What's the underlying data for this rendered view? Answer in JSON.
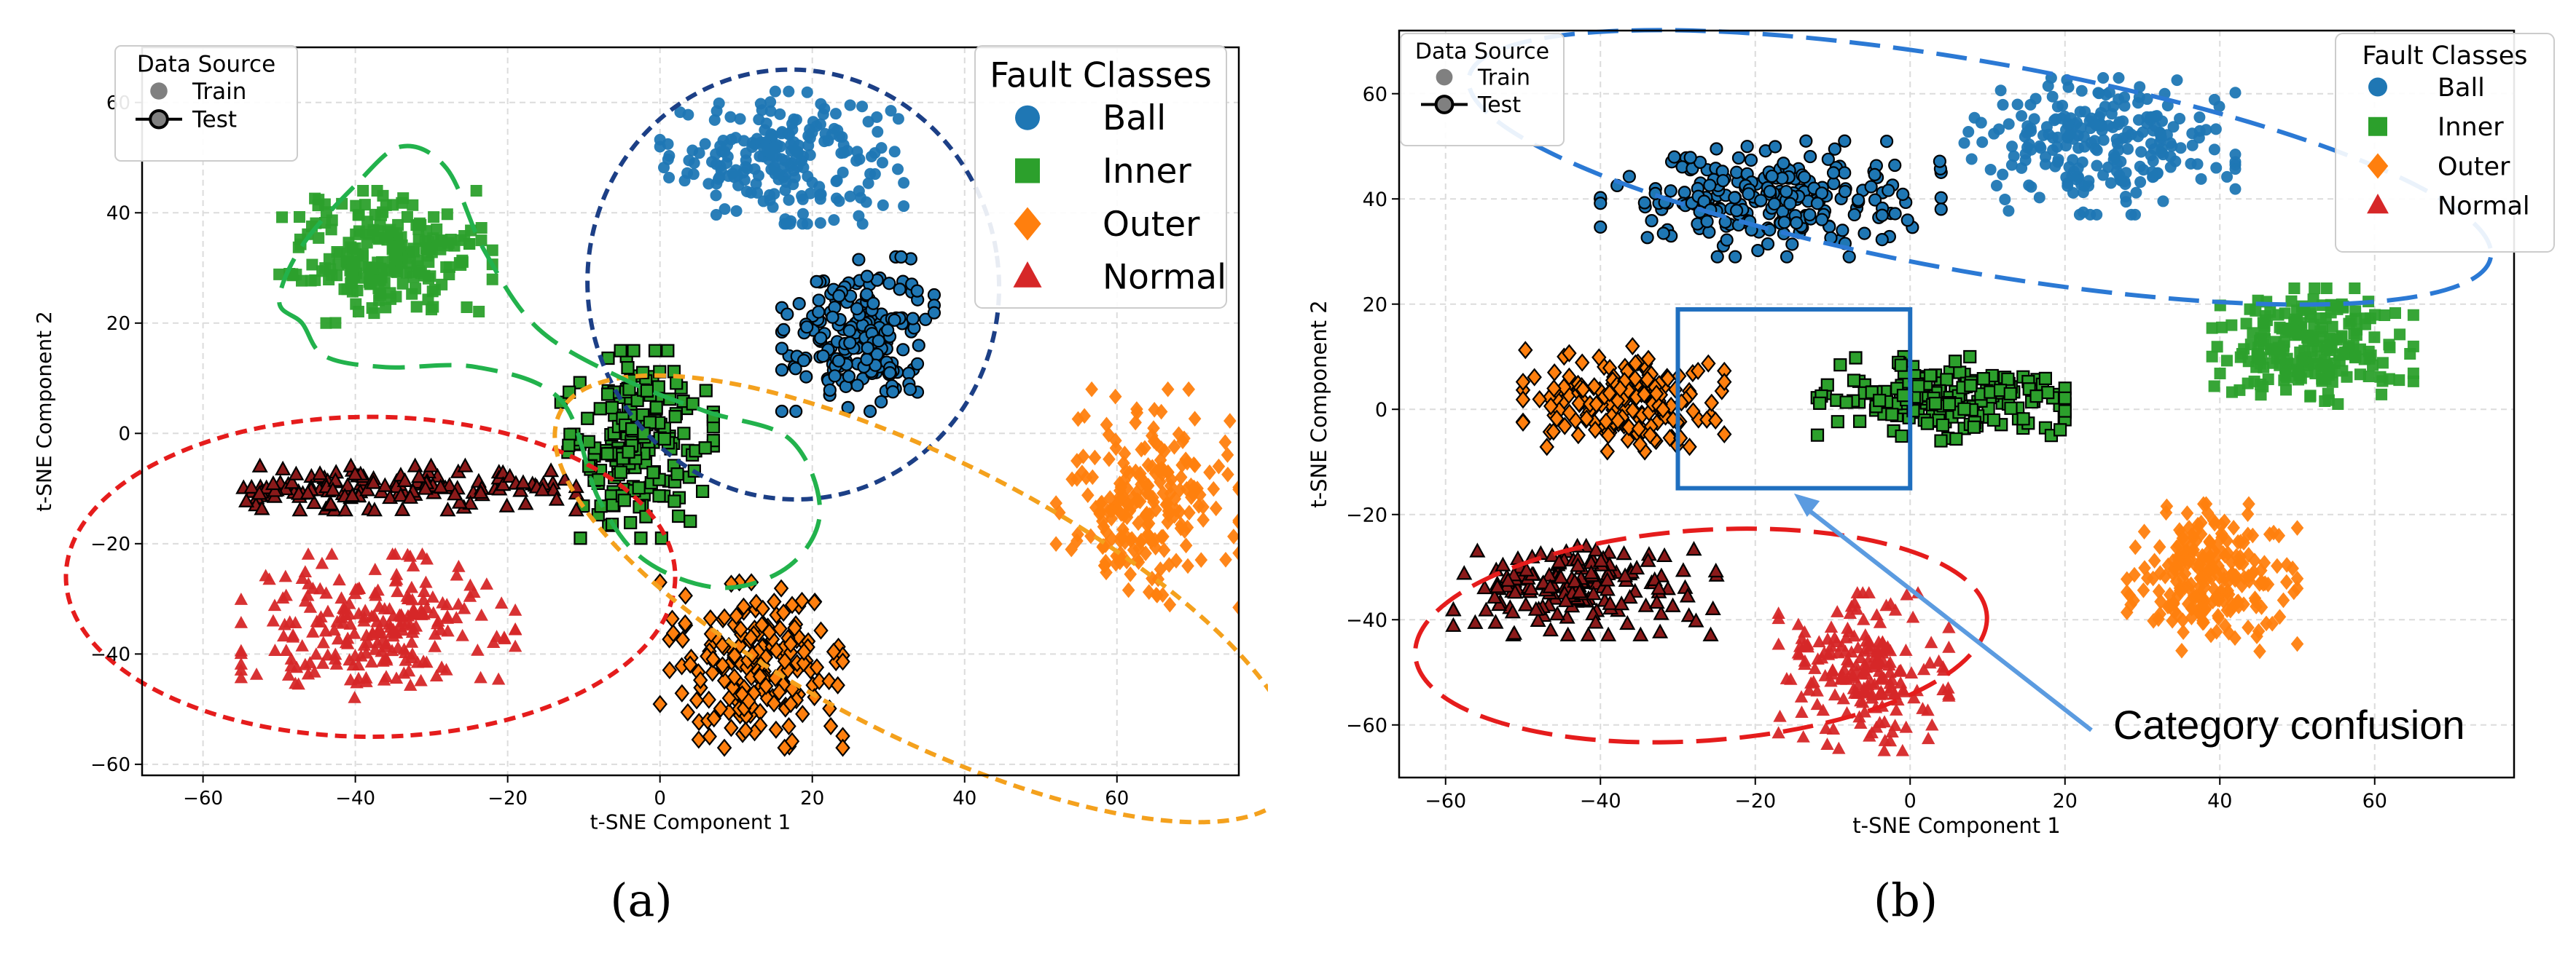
{
  "figure": {
    "captions": [
      "(a)",
      "(b)"
    ]
  },
  "colors": {
    "Ball": "#1f77b4",
    "Inner": "#2ca02c",
    "Outer": "#ff7f0e",
    "Normal": "#d62728",
    "Normal_test": "#8b1a1a",
    "annotation_box": "#1f6fbf",
    "annotation_arrow": "#5b9be0"
  },
  "chart_data": [
    {
      "id": "a",
      "type": "scatter",
      "xlabel": "t-SNE Component 1",
      "ylabel": "t-SNE Component 2",
      "xlim": [
        -68,
        76
      ],
      "ylim": [
        -62,
        70
      ],
      "xticks": [
        -60,
        -40,
        -20,
        0,
        20,
        40,
        60
      ],
      "yticks": [
        -60,
        -40,
        -20,
        0,
        20,
        40,
        60
      ],
      "grid": true,
      "legend_source": {
        "title": "Data Source",
        "entries": [
          "Train",
          "Test"
        ],
        "placement": "top-left"
      },
      "legend_classes": {
        "title": "Fault Classes",
        "entries": [
          "Ball",
          "Inner",
          "Outer",
          "Normal"
        ],
        "placement": "top-right"
      },
      "clusters": [
        {
          "class": "Ball",
          "source": "Train",
          "cx": 16,
          "cy": 50,
          "rx": 16,
          "ry": 12,
          "n": 220,
          "marker": "circle"
        },
        {
          "class": "Ball",
          "source": "Test",
          "cx": 26,
          "cy": 18,
          "rx": 10,
          "ry": 14,
          "n": 200,
          "marker": "circle"
        },
        {
          "class": "Inner",
          "source": "Train",
          "cx": -36,
          "cy": 32,
          "rx": 14,
          "ry": 12,
          "n": 230,
          "marker": "square"
        },
        {
          "class": "Inner",
          "source": "Test",
          "cx": -3,
          "cy": -2,
          "rx": 10,
          "ry": 17,
          "n": 190,
          "marker": "square"
        },
        {
          "class": "Outer",
          "source": "Train",
          "cx": 64,
          "cy": -12,
          "rx": 12,
          "ry": 20,
          "n": 220,
          "marker": "diamond"
        },
        {
          "class": "Outer",
          "source": "Test",
          "cx": 12,
          "cy": -42,
          "rx": 12,
          "ry": 15,
          "n": 200,
          "marker": "diamond"
        },
        {
          "class": "Normal",
          "source": "Test",
          "cx": -36,
          "cy": -10,
          "rx": 25,
          "ry": 4,
          "n": 150,
          "marker": "triangle"
        },
        {
          "class": "Normal",
          "source": "Train",
          "cx": -37,
          "cy": -35,
          "rx": 18,
          "ry": 13,
          "n": 230,
          "marker": "triangle"
        }
      ],
      "enclosures": [
        {
          "class": "Ball",
          "cx": 17.5,
          "cy": 27,
          "rx": 27,
          "ry": 39,
          "angle": -8,
          "dash": "short"
        },
        {
          "class": "Normal",
          "cx": -38,
          "cy": -26,
          "rx": 40,
          "ry": 29,
          "angle": 0,
          "dash": "short"
        },
        {
          "class": "Outer",
          "cx": 35,
          "cy": -30,
          "rx": 54,
          "ry": 25,
          "angle": 27,
          "dash": "short"
        }
      ]
    },
    {
      "id": "b",
      "type": "scatter",
      "xlabel": "t-SNE Component 1",
      "ylabel": "t-SNE Component 2",
      "xlim": [
        -66,
        78
      ],
      "ylim": [
        -70,
        72
      ],
      "xticks": [
        -60,
        -40,
        -20,
        0,
        20,
        40,
        60
      ],
      "yticks": [
        -60,
        -40,
        -20,
        0,
        20,
        40,
        60
      ],
      "grid": true,
      "legend_source": {
        "title": "Data Source",
        "entries": [
          "Train",
          "Test"
        ],
        "placement": "top-left"
      },
      "legend_classes": {
        "title": "Fault Classes",
        "entries": [
          "Ball",
          "Inner",
          "Outer",
          "Normal"
        ],
        "placement": "top-right"
      },
      "annotation": {
        "text": "Category confusion",
        "box_x": [
          -30,
          0
        ],
        "box_y": [
          -15,
          19
        ]
      },
      "clusters": [
        {
          "class": "Ball",
          "source": "Test",
          "cx": -18,
          "cy": 40,
          "rx": 22,
          "ry": 11,
          "n": 230,
          "marker": "circle"
        },
        {
          "class": "Ball",
          "source": "Train",
          "cx": 24,
          "cy": 50,
          "rx": 18,
          "ry": 13,
          "n": 240,
          "marker": "circle"
        },
        {
          "class": "Inner",
          "source": "Train",
          "cx": 52,
          "cy": 12,
          "rx": 13,
          "ry": 11,
          "n": 220,
          "marker": "square"
        },
        {
          "class": "Inner",
          "source": "Test",
          "cx": 4,
          "cy": 2,
          "rx": 16,
          "ry": 8,
          "n": 200,
          "marker": "square"
        },
        {
          "class": "Outer",
          "source": "Test",
          "cx": -37,
          "cy": 2,
          "rx": 13,
          "ry": 10,
          "n": 200,
          "marker": "diamond"
        },
        {
          "class": "Outer",
          "source": "Train",
          "cx": 39,
          "cy": -32,
          "rx": 11,
          "ry": 14,
          "n": 230,
          "marker": "diamond"
        },
        {
          "class": "Normal",
          "source": "Test",
          "cx": -42,
          "cy": -34,
          "rx": 17,
          "ry": 9,
          "n": 170,
          "marker": "triangle"
        },
        {
          "class": "Normal",
          "source": "Train",
          "cx": -6,
          "cy": -50,
          "rx": 11,
          "ry": 15,
          "n": 200,
          "marker": "triangle"
        }
      ],
      "enclosures": [
        {
          "class": "Ball",
          "cx": 9,
          "cy": 46,
          "rx": 67,
          "ry": 20,
          "angle": 10,
          "dash": "long"
        },
        {
          "class": "Normal",
          "cx": -27,
          "cy": -43,
          "rx": 37,
          "ry": 20,
          "angle": -4,
          "dash": "long"
        }
      ]
    }
  ]
}
